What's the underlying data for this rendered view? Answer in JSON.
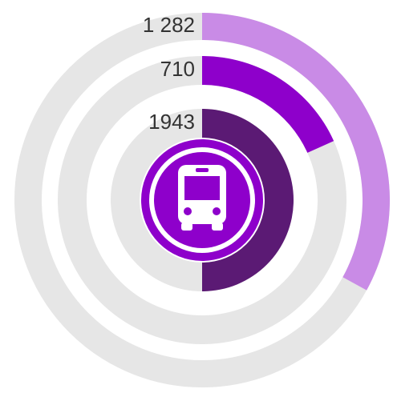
{
  "chart_data": {
    "type": "radial-bar",
    "categories": [
      null,
      null,
      null
    ],
    "values": [
      1282,
      710,
      1943
    ],
    "value_labels": [
      "1 282",
      "710",
      "1943"
    ],
    "colors": [
      "#c98be6",
      "#8e00cb",
      "#5b1a74"
    ],
    "xlim": [
      0,
      3886
    ]
  }
}
